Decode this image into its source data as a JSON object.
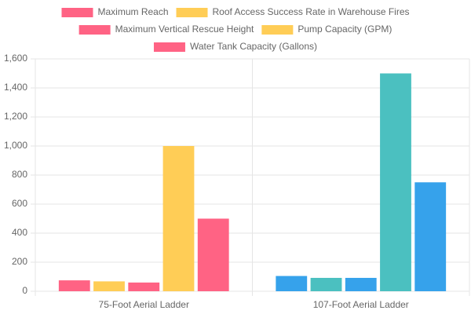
{
  "chart_data": {
    "type": "bar",
    "categories": [
      "75-Foot Aerial Ladder",
      "107-Foot Aerial Ladder"
    ],
    "series": [
      {
        "name": "Maximum Reach",
        "colors": [
          "#ff6384",
          "#36a2eb"
        ],
        "values": [
          75,
          105
        ]
      },
      {
        "name": "Roof Access Success Rate in Warehouse Fires",
        "colors": [
          "#ffcd56",
          "#4bc0c0"
        ],
        "values": [
          68,
          92
        ]
      },
      {
        "name": "Maximum Vertical Rescue Height",
        "colors": [
          "#ff6384",
          "#36a2eb"
        ],
        "values": [
          60,
          92
        ]
      },
      {
        "name": "Pump Capacity (GPM)",
        "colors": [
          "#ffcd56",
          "#4bc0c0"
        ],
        "values": [
          1000,
          1500
        ]
      },
      {
        "name": "Water Tank Capacity (Gallons)",
        "colors": [
          "#ff6384",
          "#36a2eb"
        ],
        "values": [
          500,
          750
        ]
      }
    ],
    "ylim": [
      0,
      1600
    ],
    "yticks": [
      0,
      200,
      400,
      600,
      800,
      {
        "value": 1000,
        "label": "1,000"
      },
      {
        "value": 1200,
        "label": "1,200"
      },
      {
        "value": 1400,
        "label": "1,400"
      },
      {
        "value": 1600,
        "label": "1,600"
      }
    ],
    "grid": true,
    "legend": "top"
  }
}
